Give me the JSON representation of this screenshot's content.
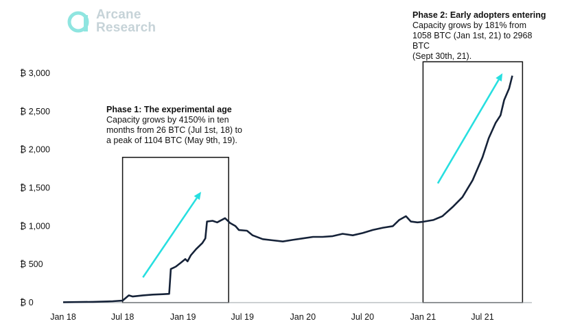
{
  "brand": {
    "name_line1": "Arcane",
    "name_line2": "Research",
    "logo_color": "#c6d3d8",
    "logo_accent": "#8fe5e0"
  },
  "annotations": [
    {
      "heading": "Phase 1: The experimental age",
      "lines": [
        "Capacity grows by 4150% in ten",
        "months from 26 BTC (Jul 1st, 18) to",
        "a peak of 1104 BTC (May 9th, 19)."
      ]
    },
    {
      "heading": "Phase 2: Early adopters entering",
      "lines": [
        "Capacity grows by 181% from",
        "1058 BTC (Jan 1st, 21) to 2968 BTC",
        "(Sept 30th, 21)."
      ]
    }
  ],
  "chart_data": {
    "type": "line",
    "title": "",
    "xlabel": "",
    "ylabel": "",
    "x_ticks": [
      "Jan 18",
      "Jul 18",
      "Jan 19",
      "Jul 19",
      "Jan 20",
      "Jul 20",
      "Jan 21",
      "Jul 21"
    ],
    "y_ticks": [
      "₿ 0",
      "₿ 500",
      "₿ 1,000",
      "₿ 1,500",
      "₿ 2,000",
      "₿ 2,500",
      "₿ 3,000"
    ],
    "ylim": [
      0,
      3000
    ],
    "xlim": [
      "2018-01-01",
      "2021-12-31"
    ],
    "grid": false,
    "line_color": "#152238",
    "arrow_color": "#27dfe0",
    "highlight_boxes": [
      {
        "x_start": "2018-07-01",
        "x_end": "2019-05-20",
        "y_top": 1900
      },
      {
        "x_start": "2021-01-01",
        "x_end": "2021-10-31",
        "y_top": 3150
      }
    ],
    "arrows": [
      {
        "from": [
          "2018-09-01",
          330
        ],
        "to": [
          "2019-02-25",
          1450
        ]
      },
      {
        "from": [
          "2021-02-15",
          1560
        ],
        "to": [
          "2021-08-31",
          3000
        ]
      }
    ],
    "series": [
      {
        "name": "",
        "points": [
          [
            "2018-01-01",
            5
          ],
          [
            "2018-04-01",
            10
          ],
          [
            "2018-06-01",
            18
          ],
          [
            "2018-07-01",
            26
          ],
          [
            "2018-07-20",
            95
          ],
          [
            "2018-08-01",
            80
          ],
          [
            "2018-09-01",
            95
          ],
          [
            "2018-10-01",
            105
          ],
          [
            "2018-11-01",
            110
          ],
          [
            "2018-11-20",
            115
          ],
          [
            "2018-11-25",
            440
          ],
          [
            "2018-12-10",
            470
          ],
          [
            "2018-12-25",
            520
          ],
          [
            "2019-01-08",
            570
          ],
          [
            "2019-01-15",
            540
          ],
          [
            "2019-01-25",
            620
          ],
          [
            "2019-02-10",
            700
          ],
          [
            "2019-03-01",
            780
          ],
          [
            "2019-03-10",
            840
          ],
          [
            "2019-03-15",
            1060
          ],
          [
            "2019-04-01",
            1070
          ],
          [
            "2019-04-15",
            1050
          ],
          [
            "2019-05-09",
            1104
          ],
          [
            "2019-05-25",
            1040
          ],
          [
            "2019-06-10",
            1000
          ],
          [
            "2019-06-20",
            950
          ],
          [
            "2019-07-15",
            940
          ],
          [
            "2019-08-01",
            880
          ],
          [
            "2019-09-01",
            830
          ],
          [
            "2019-10-01",
            815
          ],
          [
            "2019-11-01",
            800
          ],
          [
            "2019-12-01",
            820
          ],
          [
            "2020-01-01",
            840
          ],
          [
            "2020-02-01",
            860
          ],
          [
            "2020-03-01",
            860
          ],
          [
            "2020-04-01",
            870
          ],
          [
            "2020-05-01",
            900
          ],
          [
            "2020-06-01",
            880
          ],
          [
            "2020-07-01",
            910
          ],
          [
            "2020-08-01",
            950
          ],
          [
            "2020-09-01",
            980
          ],
          [
            "2020-10-01",
            1000
          ],
          [
            "2020-10-20",
            1080
          ],
          [
            "2020-11-10",
            1130
          ],
          [
            "2020-11-25",
            1060
          ],
          [
            "2020-12-15",
            1050
          ],
          [
            "2021-01-01",
            1058
          ],
          [
            "2021-02-01",
            1080
          ],
          [
            "2021-03-01",
            1130
          ],
          [
            "2021-04-01",
            1250
          ],
          [
            "2021-05-01",
            1380
          ],
          [
            "2021-06-01",
            1600
          ],
          [
            "2021-07-01",
            1900
          ],
          [
            "2021-07-20",
            2150
          ],
          [
            "2021-08-10",
            2350
          ],
          [
            "2021-08-25",
            2450
          ],
          [
            "2021-09-05",
            2650
          ],
          [
            "2021-09-20",
            2800
          ],
          [
            "2021-09-30",
            2968
          ]
        ]
      }
    ]
  }
}
